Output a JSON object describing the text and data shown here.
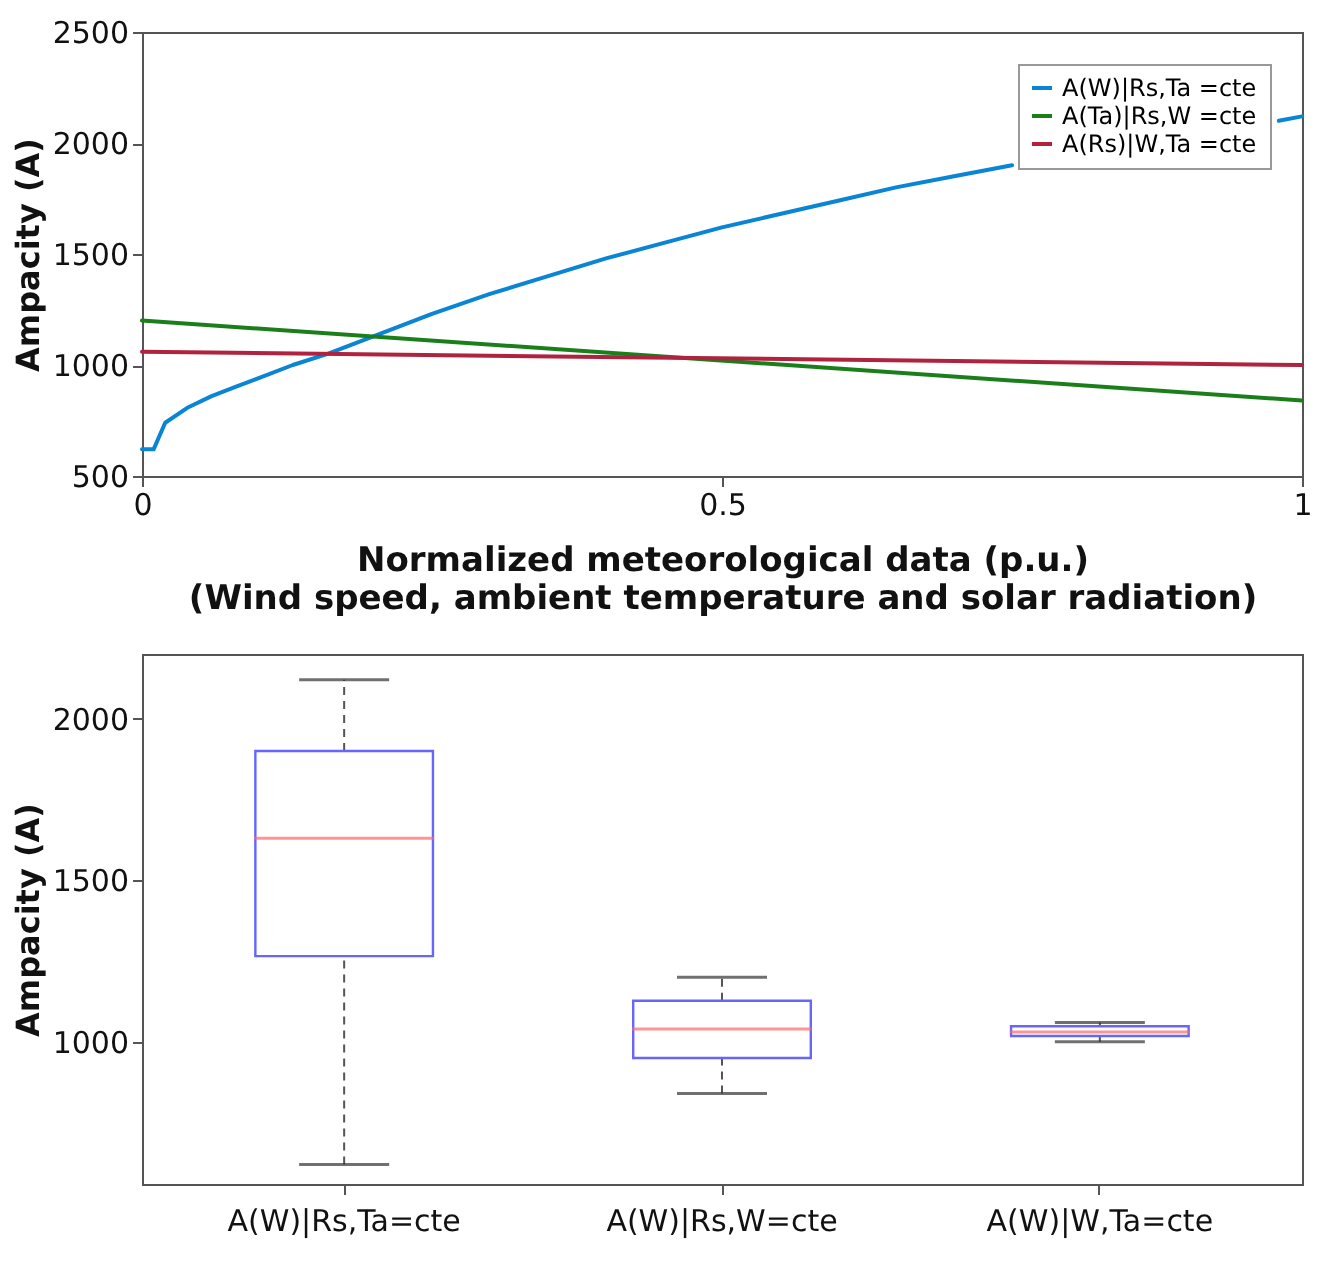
{
  "chart_data": [
    {
      "type": "line",
      "ylabel": "Ampacity (A)",
      "xlabel": [
        "Normalized meteorological data (p.u.)",
        "(Wind speed, ambient temperature and solar radiation)"
      ],
      "xlim": [
        0,
        1
      ],
      "xticks": [
        0,
        0.5,
        1
      ],
      "ylim": [
        500,
        2500
      ],
      "yticks": [
        500,
        1000,
        1500,
        2000,
        2500
      ],
      "grid": false,
      "legend": "top right",
      "line_style": "solid",
      "marker": "none",
      "series": [
        {
          "name": "A(W)|Rs,Ta =cte",
          "color": "#0a84d4",
          "x": [
            0,
            0.01,
            0.02,
            0.04,
            0.06,
            0.08,
            0.1,
            0.13,
            0.16,
            0.2,
            0.25,
            0.3,
            0.35,
            0.4,
            0.45,
            0.5,
            0.55,
            0.6,
            0.65,
            0.7,
            0.75,
            0.78,
            0.8,
            0.9,
            0.98,
            1.0
          ],
          "values": [
            620,
            620,
            740,
            810,
            860,
            900,
            940,
            1000,
            1050,
            1130,
            1230,
            1320,
            1400,
            1480,
            1550,
            1620,
            1680,
            1740,
            1800,
            1850,
            1900,
            null,
            null,
            null,
            2100,
            2120
          ]
        },
        {
          "name": "A(Ta)|Rs,W =cte",
          "color": "#1a7f1a",
          "x": [
            0,
            1
          ],
          "values": [
            1200,
            840
          ]
        },
        {
          "name": "A(Rs)|W,Ta =cte",
          "color": "#b0233f",
          "x": [
            0,
            1
          ],
          "values": [
            1060,
            1000
          ]
        }
      ]
    },
    {
      "type": "box",
      "ylabel": "Ampacity (A)",
      "ylim": [
        560,
        2200
      ],
      "yticks": [
        1000,
        1500,
        2000
      ],
      "grid": false,
      "categories": [
        "A(W)|Rs,Ta=cte",
        "A(W)|Rs,W=cte",
        "A(W)|W,Ta=cte"
      ],
      "color": "#6666ff",
      "boxes": [
        {
          "low": 620,
          "q1": 1265,
          "median": 1630,
          "q3": 1900,
          "high": 2120
        },
        {
          "low": 840,
          "q1": 950,
          "median": 1040,
          "q3": 1127,
          "high": 1200
        },
        {
          "low": 1000,
          "q1": 1018,
          "median": 1030,
          "q3": 1048,
          "high": 1060
        }
      ]
    }
  ]
}
